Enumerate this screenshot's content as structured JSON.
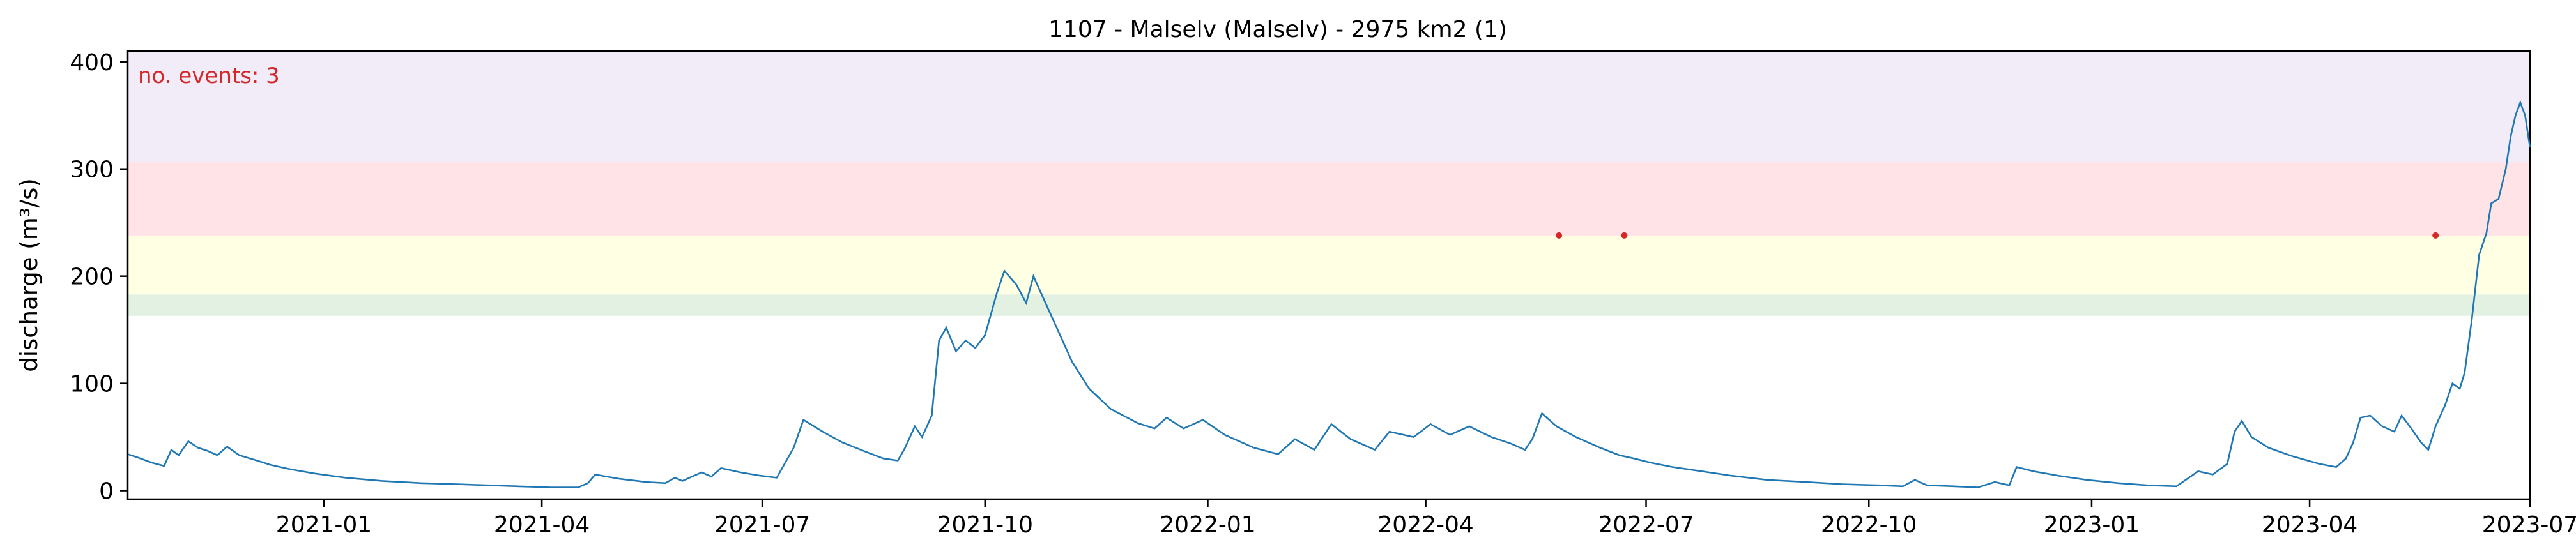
{
  "chart_data": {
    "type": "line",
    "title": "1107 - Malselv (Malselv) - 2975 km2 (1)",
    "xlabel": "",
    "ylabel": "discharge (m³/s)",
    "xlim": [
      "2020-10-12",
      "2023-07-01"
    ],
    "ylim": [
      -8,
      410
    ],
    "annotation": "no. events: 3",
    "x_ticks": [
      {
        "date": "2021-01-01",
        "label": "2021-01"
      },
      {
        "date": "2021-04-01",
        "label": "2021-04"
      },
      {
        "date": "2021-07-01",
        "label": "2021-07"
      },
      {
        "date": "2021-10-01",
        "label": "2021-10"
      },
      {
        "date": "2022-01-01",
        "label": "2022-01"
      },
      {
        "date": "2022-04-01",
        "label": "2022-04"
      },
      {
        "date": "2022-07-01",
        "label": "2022-07"
      },
      {
        "date": "2022-10-01",
        "label": "2022-10"
      },
      {
        "date": "2023-01-01",
        "label": "2023-01"
      },
      {
        "date": "2023-04-01",
        "label": "2023-04"
      },
      {
        "date": "2023-07-01",
        "label": "2023-07"
      }
    ],
    "y_ticks": [
      {
        "value": 0,
        "label": "0"
      },
      {
        "value": 100,
        "label": "100"
      },
      {
        "value": 200,
        "label": "200"
      },
      {
        "value": 300,
        "label": "300"
      },
      {
        "value": 400,
        "label": "400"
      }
    ],
    "bands": [
      {
        "from": 163,
        "to": 183,
        "color": "#e3f1e3"
      },
      {
        "from": 183,
        "to": 238,
        "color": "#ffffe3"
      },
      {
        "from": 238,
        "to": 307,
        "color": "#ffe3e6"
      },
      {
        "from": 307,
        "to": 410,
        "color": "#f1ecf8"
      }
    ],
    "series": [
      {
        "color": "#1f77b4",
        "points": [
          [
            "2020-10-12",
            34
          ],
          [
            "2020-10-16",
            31
          ],
          [
            "2020-10-22",
            26
          ],
          [
            "2020-10-27",
            23
          ],
          [
            "2020-10-30",
            38
          ],
          [
            "2020-11-02",
            33
          ],
          [
            "2020-11-06",
            46
          ],
          [
            "2020-11-10",
            40
          ],
          [
            "2020-11-14",
            37
          ],
          [
            "2020-11-18",
            33
          ],
          [
            "2020-11-22",
            41
          ],
          [
            "2020-11-27",
            33
          ],
          [
            "2020-12-03",
            29
          ],
          [
            "2020-12-10",
            24
          ],
          [
            "2020-12-18",
            20
          ],
          [
            "2020-12-28",
            16
          ],
          [
            "2021-01-10",
            12
          ],
          [
            "2021-01-25",
            9
          ],
          [
            "2021-02-10",
            7
          ],
          [
            "2021-02-25",
            6
          ],
          [
            "2021-03-10",
            5
          ],
          [
            "2021-03-22",
            4
          ],
          [
            "2021-04-05",
            3
          ],
          [
            "2021-04-16",
            3
          ],
          [
            "2021-04-20",
            7
          ],
          [
            "2021-04-23",
            15
          ],
          [
            "2021-05-03",
            11
          ],
          [
            "2021-05-14",
            8
          ],
          [
            "2021-05-22",
            7
          ],
          [
            "2021-05-26",
            12
          ],
          [
            "2021-05-29",
            9
          ],
          [
            "2021-06-02",
            13
          ],
          [
            "2021-06-06",
            17
          ],
          [
            "2021-06-10",
            13
          ],
          [
            "2021-06-14",
            21
          ],
          [
            "2021-06-22",
            17
          ],
          [
            "2021-06-30",
            14
          ],
          [
            "2021-07-07",
            12
          ],
          [
            "2021-07-14",
            40
          ],
          [
            "2021-07-18",
            66
          ],
          [
            "2021-07-26",
            55
          ],
          [
            "2021-08-03",
            45
          ],
          [
            "2021-08-13",
            36
          ],
          [
            "2021-08-20",
            30
          ],
          [
            "2021-08-26",
            28
          ],
          [
            "2021-08-29",
            40
          ],
          [
            "2021-09-02",
            60
          ],
          [
            "2021-09-05",
            50
          ],
          [
            "2021-09-09",
            70
          ],
          [
            "2021-09-12",
            140
          ],
          [
            "2021-09-15",
            152
          ],
          [
            "2021-09-19",
            130
          ],
          [
            "2021-09-23",
            140
          ],
          [
            "2021-09-27",
            133
          ],
          [
            "2021-10-01",
            145
          ],
          [
            "2021-10-06",
            185
          ],
          [
            "2021-10-09",
            205
          ],
          [
            "2021-10-14",
            192
          ],
          [
            "2021-10-18",
            175
          ],
          [
            "2021-10-21",
            200
          ],
          [
            "2021-10-25",
            180
          ],
          [
            "2021-10-30",
            155
          ],
          [
            "2021-11-06",
            120
          ],
          [
            "2021-11-13",
            95
          ],
          [
            "2021-11-22",
            76
          ],
          [
            "2021-12-03",
            63
          ],
          [
            "2021-12-10",
            58
          ],
          [
            "2021-12-15",
            68
          ],
          [
            "2021-12-22",
            58
          ],
          [
            "2021-12-30",
            66
          ],
          [
            "2022-01-08",
            52
          ],
          [
            "2022-01-20",
            40
          ],
          [
            "2022-01-30",
            34
          ],
          [
            "2022-02-06",
            48
          ],
          [
            "2022-02-14",
            38
          ],
          [
            "2022-02-21",
            62
          ],
          [
            "2022-03-01",
            48
          ],
          [
            "2022-03-11",
            38
          ],
          [
            "2022-03-17",
            55
          ],
          [
            "2022-03-27",
            50
          ],
          [
            "2022-04-03",
            62
          ],
          [
            "2022-04-11",
            52
          ],
          [
            "2022-04-19",
            60
          ],
          [
            "2022-04-28",
            50
          ],
          [
            "2022-05-06",
            44
          ],
          [
            "2022-05-12",
            38
          ],
          [
            "2022-05-15",
            48
          ],
          [
            "2022-05-19",
            72
          ],
          [
            "2022-05-25",
            60
          ],
          [
            "2022-06-02",
            50
          ],
          [
            "2022-06-12",
            40
          ],
          [
            "2022-06-20",
            33
          ],
          [
            "2022-06-26",
            30
          ],
          [
            "2022-07-03",
            26
          ],
          [
            "2022-07-12",
            22
          ],
          [
            "2022-07-24",
            18
          ],
          [
            "2022-08-05",
            14
          ],
          [
            "2022-08-20",
            10
          ],
          [
            "2022-09-05",
            8
          ],
          [
            "2022-09-20",
            6
          ],
          [
            "2022-10-05",
            5
          ],
          [
            "2022-10-15",
            4
          ],
          [
            "2022-10-20",
            10
          ],
          [
            "2022-10-25",
            5
          ],
          [
            "2022-11-05",
            4
          ],
          [
            "2022-11-15",
            3
          ],
          [
            "2022-11-22",
            8
          ],
          [
            "2022-11-28",
            5
          ],
          [
            "2022-12-01",
            22
          ],
          [
            "2022-12-08",
            18
          ],
          [
            "2022-12-18",
            14
          ],
          [
            "2022-12-30",
            10
          ],
          [
            "2023-01-12",
            7
          ],
          [
            "2023-01-24",
            5
          ],
          [
            "2023-02-05",
            4
          ],
          [
            "2023-02-14",
            18
          ],
          [
            "2023-02-20",
            15
          ],
          [
            "2023-02-26",
            25
          ],
          [
            "2023-03-01",
            55
          ],
          [
            "2023-03-04",
            65
          ],
          [
            "2023-03-08",
            50
          ],
          [
            "2023-03-15",
            40
          ],
          [
            "2023-03-25",
            32
          ],
          [
            "2023-04-05",
            25
          ],
          [
            "2023-04-12",
            22
          ],
          [
            "2023-04-16",
            30
          ],
          [
            "2023-04-19",
            45
          ],
          [
            "2023-04-22",
            68
          ],
          [
            "2023-04-26",
            70
          ],
          [
            "2023-05-01",
            60
          ],
          [
            "2023-05-06",
            55
          ],
          [
            "2023-05-09",
            70
          ],
          [
            "2023-05-13",
            58
          ],
          [
            "2023-05-17",
            45
          ],
          [
            "2023-05-20",
            38
          ],
          [
            "2023-05-23",
            60
          ],
          [
            "2023-05-27",
            80
          ],
          [
            "2023-05-30",
            100
          ],
          [
            "2023-06-02",
            95
          ],
          [
            "2023-06-04",
            110
          ],
          [
            "2023-06-07",
            160
          ],
          [
            "2023-06-10",
            220
          ],
          [
            "2023-06-13",
            240
          ],
          [
            "2023-06-15",
            268
          ],
          [
            "2023-06-18",
            272
          ],
          [
            "2023-06-21",
            300
          ],
          [
            "2023-06-23",
            330
          ],
          [
            "2023-06-25",
            350
          ],
          [
            "2023-06-27",
            362
          ],
          [
            "2023-06-29",
            350
          ],
          [
            "2023-07-01",
            320
          ]
        ]
      }
    ],
    "events": [
      {
        "date": "2022-05-26",
        "value": 238
      },
      {
        "date": "2022-06-22",
        "value": 238
      },
      {
        "date": "2023-05-23",
        "value": 238
      }
    ]
  }
}
